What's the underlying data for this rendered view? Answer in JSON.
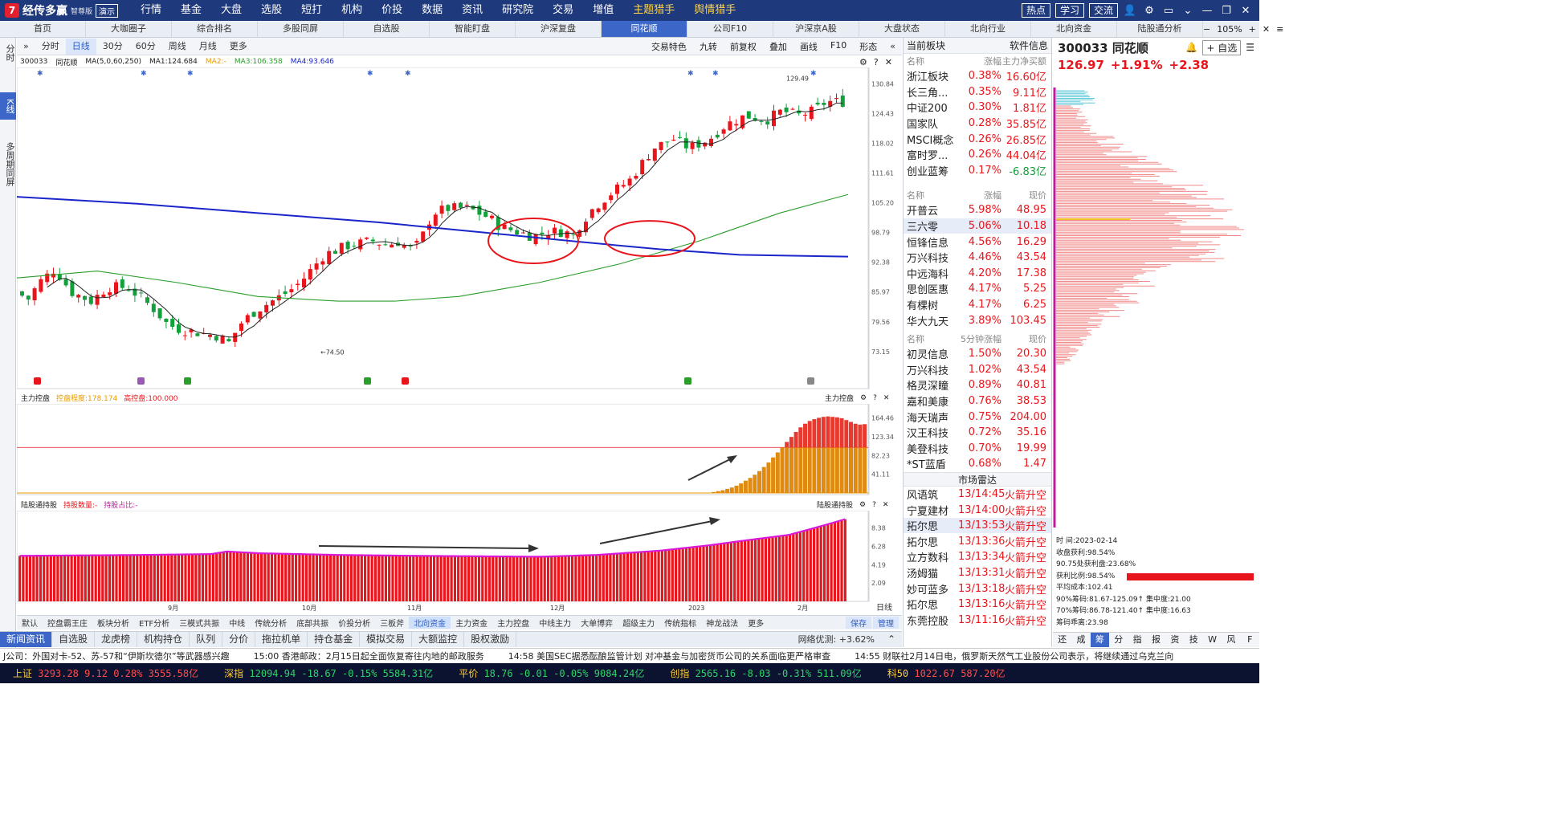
{
  "app": {
    "name": "经传多赢",
    "edition": "智尊版",
    "demo": "演示"
  },
  "menu": [
    "行情",
    "基金",
    "大盘",
    "选股",
    "短打",
    "机构",
    "价投",
    "数据",
    "资讯",
    "研究院",
    "交易",
    "增值",
    "主题猎手",
    "舆情猎手"
  ],
  "top_right": [
    "热点",
    "学习",
    "交流"
  ],
  "tabs": [
    "首页",
    "大咖圈子",
    "综合排名",
    "多股同屏",
    "自选股",
    "智能盯盘",
    "沪深复盘",
    "同花顺",
    "公司F10",
    "沪深京A股",
    "大盘状态",
    "北向行业",
    "北向资金",
    "陆股通分析"
  ],
  "tabbar_zoom": "105%",
  "left_tabs": [
    "分时",
    "K线",
    "多周期同屏"
  ],
  "periods": [
    "分时",
    "日线",
    "30分",
    "60分",
    "周线",
    "月线",
    "更多"
  ],
  "chart_tools": [
    "交易特色",
    "九转",
    "前复权",
    "叠加",
    "画线",
    "F10",
    "形态"
  ],
  "stock": {
    "code": "300033",
    "name": "同花顺",
    "price": "126.97",
    "pct": "+1.91%",
    "chg": "+2.38"
  },
  "kinfo": {
    "ma_label": "MA(5,0,60,250)",
    "ma1": "MA1:124.684",
    "ma2": "MA2:-",
    "ma3": "MA3:106.358",
    "ma4": "MA4:93.646"
  },
  "price_axis": [
    "130.84",
    "124.43",
    "118.02",
    "111.61",
    "105.20",
    "98.79",
    "92.38",
    "85.97",
    "79.56",
    "73.15"
  ],
  "high_label": "129.49",
  "low_label": "74.50",
  "ctrl": {
    "title": "主力控盘",
    "deg": "控盘程度:178.174",
    "high": "高控盘:100.000",
    "right": "主力控盘",
    "axis": [
      "164.46",
      "123.34",
      "82.23",
      "41.11"
    ]
  },
  "hk": {
    "title": "陆股通持股",
    "qty": "持股数量:-",
    "ratio": "持股占比:-",
    "right": "陆股通持股",
    "axis": [
      "8.38",
      "6.28",
      "4.19",
      "2.09"
    ]
  },
  "months": [
    "9月",
    "10月",
    "11月",
    "12月",
    "2023",
    "2月"
  ],
  "period_corner": "日线",
  "bottom_tabs": [
    "默认",
    "控盘霸王庄",
    "板块分析",
    "ETF分析",
    "三模式共振",
    "中线",
    "传统分析",
    "底部共振",
    "价投分析",
    "三板斧",
    "北向资金",
    "主力资金",
    "主力控盘",
    "中线主力",
    "大单博弈",
    "超级主力",
    "传统指标",
    "神龙战法",
    "更多"
  ],
  "bottom_right": [
    "保存",
    "管理"
  ],
  "news_tabs": [
    "新闻资讯",
    "自选股",
    "龙虎榜",
    "机构持仓",
    "队列",
    "分价",
    "拖拉机单",
    "持仓基金",
    "模拟交易",
    "大额监控",
    "股权激励"
  ],
  "net_speed": "网络优测: +3.62%",
  "ticker": [
    "J公司：外国对卡-52、苏-57和“伊斯坎德尔”等武器感兴趣",
    "15:00  香港邮政：2月15日起全面恢复寄往内地的邮政服务",
    "14:58  美国SEC据悉酝酿监管计划 对冲基金与加密货币公司的关系面临更严格审查",
    "14:55  财联社2月14日电，俄罗斯天然气工业股份公司表示，将继续通过乌克兰向"
  ],
  "indices": [
    {
      "name": "上证",
      "val": "3293.28",
      "chg": "9.12",
      "pct": "0.28%",
      "amt": "3555.58亿",
      "dir": "up"
    },
    {
      "name": "深指",
      "val": "12094.94",
      "chg": "-18.67",
      "pct": "-0.15%",
      "amt": "5584.31亿",
      "dir": "dn"
    },
    {
      "name": "平价",
      "val": "18.76",
      "chg": "-0.01",
      "pct": "-0.05%",
      "amt": "9084.24亿",
      "dir": "dn"
    },
    {
      "name": "创指",
      "val": "2565.16",
      "chg": "-8.03",
      "pct": "-0.31%",
      "amt": "511.09亿",
      "dir": "dn"
    },
    {
      "name": "科50",
      "val": "1022.67",
      "chg": "",
      "pct": "",
      "amt": "587.20亿",
      "dir": "up"
    }
  ],
  "sector_panel": {
    "title": "当前板块",
    "info": "软件信息",
    "cols": [
      "名称",
      "涨幅",
      "主力净买额"
    ],
    "rows": [
      [
        "浙江板块",
        "0.38%",
        "16.60亿"
      ],
      [
        "长三角...",
        "0.35%",
        "9.11亿"
      ],
      [
        "中证200",
        "0.30%",
        "1.81亿"
      ],
      [
        "国家队",
        "0.28%",
        "35.85亿"
      ],
      [
        "MSCI概念",
        "0.26%",
        "26.85亿"
      ],
      [
        "富时罗...",
        "0.26%",
        "44.04亿"
      ],
      [
        "创业蓝筹",
        "0.17%",
        "-6.83亿"
      ]
    ]
  },
  "gain_panel": {
    "cols": [
      "名称",
      "涨幅",
      "现价"
    ],
    "rows": [
      [
        "开普云",
        "5.98%",
        "48.95"
      ],
      [
        "三六零",
        "5.06%",
        "10.18"
      ],
      [
        "恒锋信息",
        "4.56%",
        "16.29"
      ],
      [
        "万兴科技",
        "4.46%",
        "43.54"
      ],
      [
        "中远海科",
        "4.20%",
        "17.38"
      ],
      [
        "思创医惠",
        "4.17%",
        "5.25"
      ],
      [
        "有棵树",
        "4.17%",
        "6.25"
      ],
      [
        "华大九天",
        "3.89%",
        "103.45"
      ]
    ]
  },
  "speed_panel": {
    "cols": [
      "名称",
      "5分钟涨幅",
      "现价"
    ],
    "rows": [
      [
        "初灵信息",
        "1.50%",
        "20.30"
      ],
      [
        "万兴科技",
        "1.02%",
        "43.54"
      ],
      [
        "格灵深瞳",
        "0.89%",
        "40.81"
      ],
      [
        "嘉和美康",
        "0.76%",
        "38.53"
      ],
      [
        "海天瑞声",
        "0.75%",
        "204.00"
      ],
      [
        "汉王科技",
        "0.72%",
        "35.16"
      ],
      [
        "美登科技",
        "0.70%",
        "19.99"
      ],
      [
        "*ST蓝盾",
        "0.68%",
        "1.47"
      ]
    ]
  },
  "radar": {
    "title": "市场雷达",
    "rows": [
      [
        "风语筑",
        "13/14:45",
        "火箭升空"
      ],
      [
        "宁夏建材",
        "13/14:00",
        "火箭升空"
      ],
      [
        "拓尔思",
        "13/13:53",
        "火箭升空"
      ],
      [
        "拓尔思",
        "13/13:36",
        "火箭升空"
      ],
      [
        "立方数科",
        "13/13:34",
        "火箭升空"
      ],
      [
        "汤姆猫",
        "13/13:31",
        "火箭升空"
      ],
      [
        "妙可蓝多",
        "13/13:18",
        "火箭升空"
      ],
      [
        "拓尔思",
        "13/13:16",
        "火箭升空"
      ],
      [
        "东莞控股",
        "13/11:16",
        "火箭升空"
      ]
    ]
  },
  "chip": {
    "time_label": "时",
    "time_label2": "间:2023-02-14",
    "lines": [
      "收盘获利:98.54%",
      "90.75处获利盘:23.68%",
      "获利比例:98.54%",
      "平均成本:102.41",
      "90%筹码:81.67-125.09↑ 集中度:21.00",
      "70%筹码:86.78-121.40↑ 集中度:16.63",
      "筹码乖离:23.98"
    ],
    "profit_ratio": 0.9854,
    "btns": [
      "还",
      "成",
      "筹",
      "分",
      "指",
      "报",
      "资",
      "技",
      "W",
      "风",
      "F"
    ]
  },
  "icons": [
    "settings-icon",
    "help-icon",
    "close-icon",
    "bell-icon",
    "plus-icon",
    "menu-icon"
  ],
  "colors": {
    "up": "#e8161c",
    "down": "#11a03a",
    "ma1": "#222222",
    "ma3": "#2a9d2a",
    "ma4": "#1a26c9",
    "accent": "#3c67c8"
  }
}
